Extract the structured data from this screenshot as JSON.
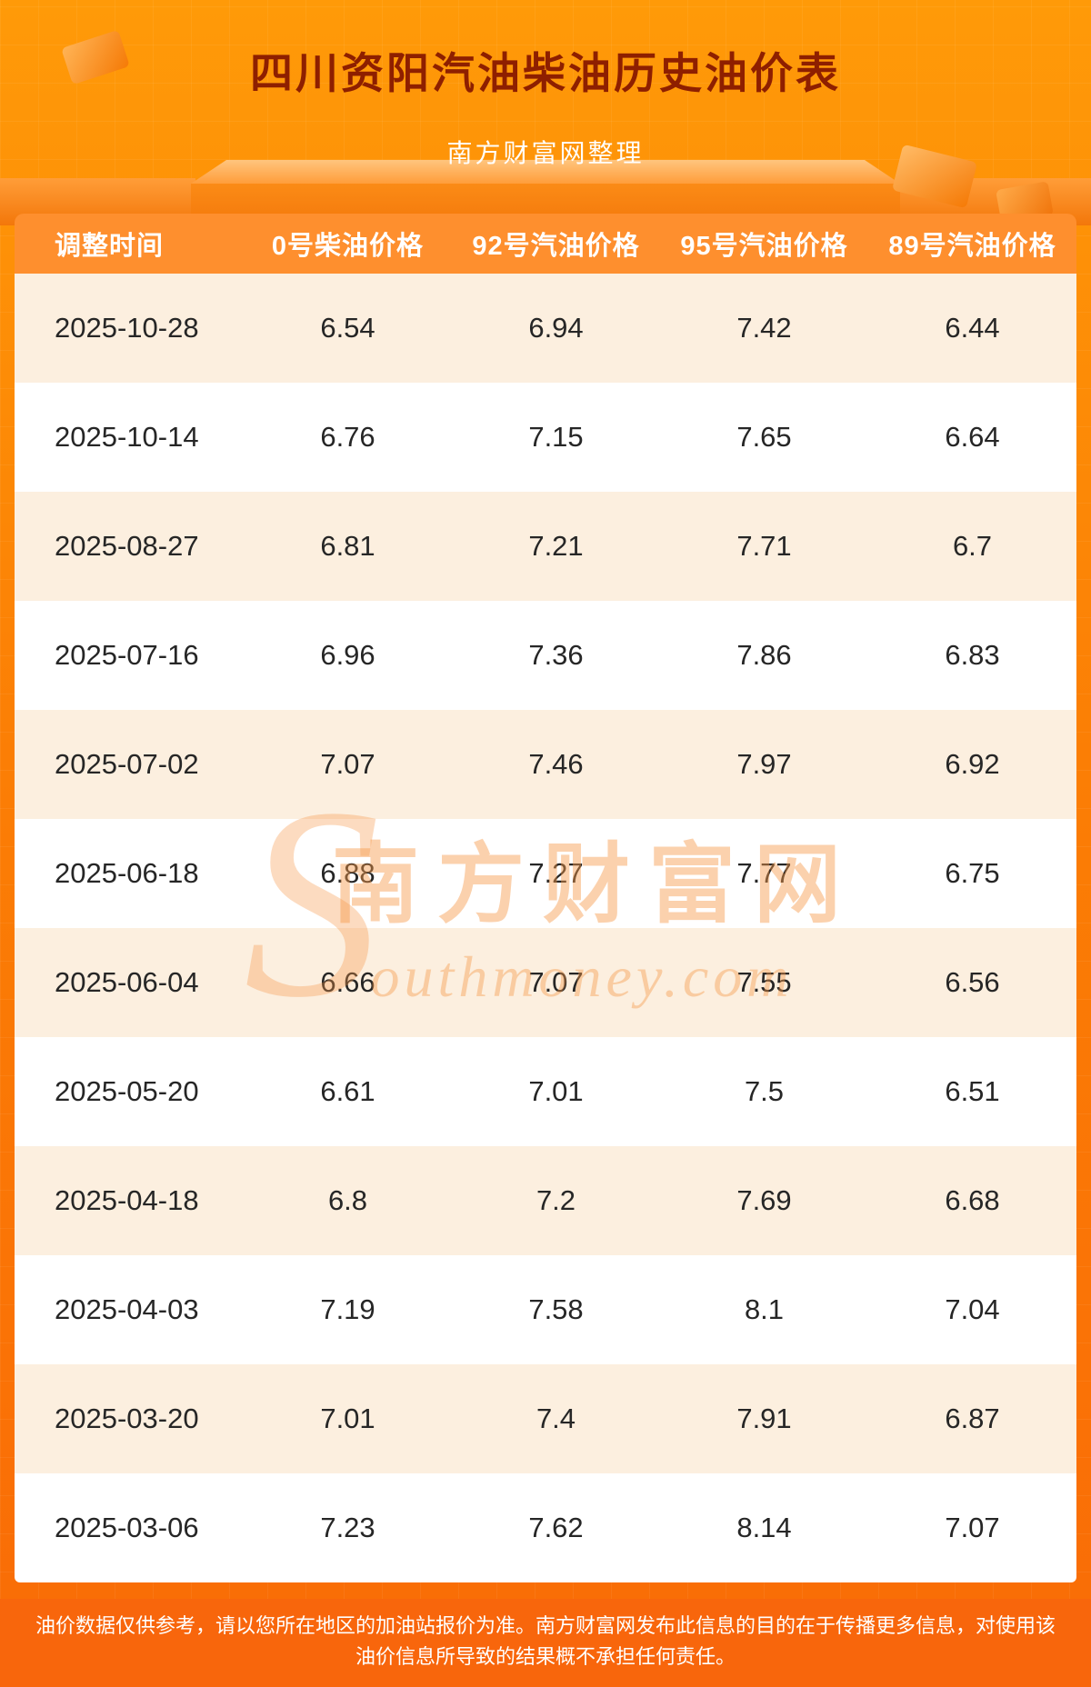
{
  "page": {
    "title": "四川资阳汽油柴油历史油价表",
    "subtitle": "南方财富网整理"
  },
  "watermark": {
    "initial": "S",
    "cn": "南方财富网",
    "en": "outhmoney.com"
  },
  "chart_data": {
    "type": "table",
    "title": "四川资阳汽油柴油历史油价表",
    "columns": [
      "调整时间",
      "0号柴油价格",
      "92号汽油价格",
      "95号汽油价格",
      "89号汽油价格"
    ],
    "rows": [
      [
        "2025-10-28",
        "6.54",
        "6.94",
        "7.42",
        "6.44"
      ],
      [
        "2025-10-14",
        "6.76",
        "7.15",
        "7.65",
        "6.64"
      ],
      [
        "2025-08-27",
        "6.81",
        "7.21",
        "7.71",
        "6.7"
      ],
      [
        "2025-07-16",
        "6.96",
        "7.36",
        "7.86",
        "6.83"
      ],
      [
        "2025-07-02",
        "7.07",
        "7.46",
        "7.97",
        "6.92"
      ],
      [
        "2025-06-18",
        "6.88",
        "7.27",
        "7.77",
        "6.75"
      ],
      [
        "2025-06-04",
        "6.66",
        "7.07",
        "7.55",
        "6.56"
      ],
      [
        "2025-05-20",
        "6.61",
        "7.01",
        "7.5",
        "6.51"
      ],
      [
        "2025-04-18",
        "6.8",
        "7.2",
        "7.69",
        "6.68"
      ],
      [
        "2025-04-03",
        "7.19",
        "7.58",
        "8.1",
        "7.04"
      ],
      [
        "2025-03-20",
        "7.01",
        "7.4",
        "7.91",
        "6.87"
      ],
      [
        "2025-03-06",
        "7.23",
        "7.62",
        "8.14",
        "7.07"
      ]
    ]
  },
  "footer": {
    "text": "油价数据仅供参考，请以您所在地区的加油站报价为准。南方财富网发布此信息的目的在于传播更多信息，对使用该油价信息所导致的结果概不承担任何责任。"
  },
  "colors": {
    "background_top": "#ff9a08",
    "background_bottom": "#f96c06",
    "title_red": "#8e1f00",
    "header_orange": "#fe8f2e",
    "row_peach": "#fcefdf",
    "row_white": "#ffffff",
    "footer_orange": "#f8660c",
    "watermark_orange": "#f6994a"
  }
}
